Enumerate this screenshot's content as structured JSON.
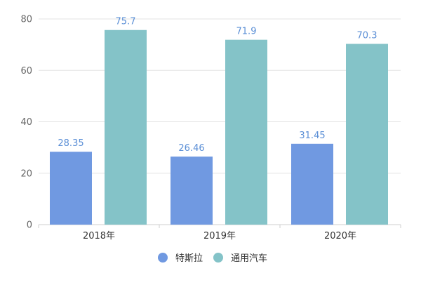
{
  "chart_data": {
    "type": "bar",
    "categories": [
      "2018年",
      "2019年",
      "2020年"
    ],
    "series": [
      {
        "name": "特斯拉",
        "color": "#7099e1",
        "values": [
          28.35,
          26.46,
          31.45
        ],
        "labels": [
          "28.35",
          "26.46",
          "31.45"
        ]
      },
      {
        "name": "通用汽车",
        "color": "#84c3c8",
        "values": [
          75.7,
          71.9,
          70.3
        ],
        "labels": [
          "75.7",
          "71.9",
          "70.3"
        ]
      }
    ],
    "ylim": [
      0,
      80
    ],
    "yticks": [
      0,
      20,
      40,
      60,
      80
    ],
    "grid": true,
    "legend": "bottom",
    "colors": {
      "grid": "#e3e3e3",
      "axis": "#cfcfcf",
      "tick_text": "#666666",
      "data_label": "#5b8fd6",
      "category_text": "#333333"
    }
  }
}
